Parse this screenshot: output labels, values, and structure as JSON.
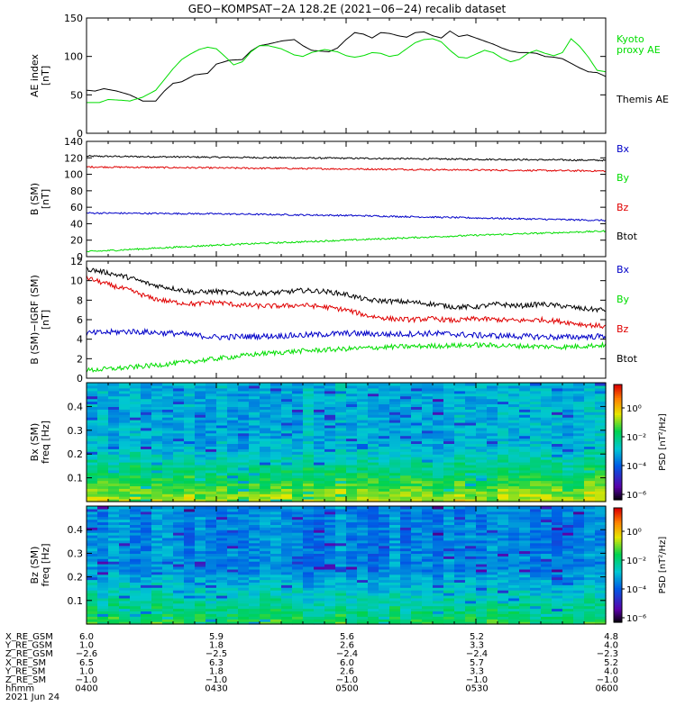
{
  "title": "GEO−KOMPSAT−2A 128.2E (2021−06−24) recalib dataset",
  "colors": {
    "black": "#000000",
    "green": "#00dd00",
    "red": "#e00000",
    "blue": "#0000c8"
  },
  "chart_data": [
    {
      "type": "line",
      "ylabel": "AE index\n[nT]",
      "ylim": [
        0,
        150
      ],
      "yticks": [
        0,
        50,
        100,
        150
      ],
      "legend": [
        {
          "name": "Kyoto\nproxy AE",
          "color": "#00dd00"
        },
        {
          "name": "Themis AE",
          "color": "#000000"
        }
      ],
      "series": [
        {
          "name": "Themis AE",
          "color": "#000000",
          "x": [
            0,
            2,
            4,
            7,
            10,
            13,
            16,
            18,
            20,
            22,
            25,
            28,
            30,
            33,
            36,
            38,
            40,
            42,
            45,
            48,
            50,
            52,
            54,
            56,
            58,
            60,
            62,
            64,
            66,
            68,
            70,
            72,
            74,
            76,
            78,
            80,
            82,
            84,
            86,
            88,
            90,
            92,
            94,
            96,
            98,
            100,
            102,
            104,
            106,
            108,
            110,
            112,
            114,
            116,
            118,
            120
          ],
          "values": [
            56,
            55,
            58,
            55,
            50,
            42,
            42,
            55,
            65,
            67,
            76,
            78,
            90,
            95,
            96,
            107,
            114,
            116,
            120,
            122,
            114,
            108,
            107,
            106,
            111,
            122,
            131,
            129,
            124,
            131,
            130,
            127,
            125,
            131,
            132,
            127,
            124,
            133,
            126,
            128,
            124,
            120,
            116,
            111,
            107,
            105,
            105,
            104,
            100,
            99,
            97,
            91,
            85,
            80,
            79,
            74
          ]
        },
        {
          "name": "Kyoto proxy AE",
          "color": "#00dd00",
          "x": [
            0,
            3,
            5,
            8,
            10,
            13,
            16,
            18,
            20,
            22,
            24,
            26,
            28,
            30,
            32,
            34,
            36,
            38,
            40,
            42,
            45,
            48,
            50,
            52,
            55,
            58,
            60,
            62,
            64,
            66,
            68,
            70,
            72,
            74,
            76,
            78,
            80,
            82,
            84,
            86,
            88,
            90,
            92,
            94,
            96,
            98,
            100,
            102,
            104,
            106,
            108,
            110,
            112,
            114,
            116,
            118,
            120
          ],
          "values": [
            40,
            40,
            44,
            43,
            42,
            47,
            56,
            70,
            84,
            96,
            103,
            109,
            112,
            110,
            100,
            89,
            93,
            106,
            114,
            114,
            110,
            102,
            100,
            105,
            109,
            106,
            101,
            99,
            101,
            105,
            104,
            100,
            102,
            110,
            118,
            122,
            123,
            119,
            108,
            99,
            98,
            103,
            108,
            105,
            98,
            93,
            96,
            104,
            108,
            104,
            101,
            105,
            123,
            113,
            99,
            82,
            80
          ]
        }
      ]
    },
    {
      "type": "line",
      "ylabel": "B (SM)\n[nT]",
      "ylim": [
        0,
        140
      ],
      "yticks": [
        0,
        20,
        40,
        60,
        80,
        100,
        120,
        140
      ],
      "legend": [
        {
          "name": "Bx",
          "color": "#0000c8"
        },
        {
          "name": "By",
          "color": "#00dd00"
        },
        {
          "name": "Bz",
          "color": "#e00000"
        },
        {
          "name": "Btot",
          "color": "#000000"
        }
      ],
      "series": [
        {
          "name": "Btot",
          "color": "#000000",
          "x": [
            0,
            120
          ],
          "values": [
            122,
            117
          ],
          "noise": 0.7
        },
        {
          "name": "Bz",
          "color": "#e00000",
          "x": [
            0,
            120
          ],
          "values": [
            109,
            104
          ],
          "noise": 0.7
        },
        {
          "name": "Bx",
          "color": "#0000c8",
          "x": [
            0,
            30,
            60,
            90,
            120
          ],
          "values": [
            53,
            52,
            50,
            47,
            44
          ],
          "noise": 0.7
        },
        {
          "name": "By",
          "color": "#00dd00",
          "x": [
            0,
            30,
            60,
            90,
            120
          ],
          "values": [
            6,
            14,
            20,
            26,
            31
          ],
          "noise": 0.7
        }
      ]
    },
    {
      "type": "line",
      "ylabel": "B (SM)−IGRF (SM)\n[nT]",
      "ylim": [
        0,
        12
      ],
      "yticks": [
        0,
        2,
        4,
        6,
        8,
        10,
        12
      ],
      "legend": [
        {
          "name": "Bx",
          "color": "#0000c8"
        },
        {
          "name": "By",
          "color": "#00dd00"
        },
        {
          "name": "Bz",
          "color": "#e00000"
        },
        {
          "name": "Btot",
          "color": "#000000"
        }
      ],
      "series": [
        {
          "name": "Btot",
          "color": "#000000",
          "x": [
            0,
            5,
            10,
            15,
            20,
            25,
            30,
            35,
            40,
            45,
            50,
            55,
            60,
            65,
            70,
            75,
            80,
            85,
            90,
            95,
            100,
            105,
            110,
            115,
            120
          ],
          "values": [
            11.2,
            10.8,
            10.3,
            9.6,
            9.2,
            8.8,
            8.9,
            8.7,
            8.7,
            8.8,
            9.0,
            8.9,
            8.6,
            8.0,
            7.9,
            7.8,
            7.6,
            7.3,
            7.3,
            7.6,
            7.4,
            7.6,
            7.4,
            7.1,
            7.0
          ],
          "noise": 0.25
        },
        {
          "name": "Bz",
          "color": "#e00000",
          "x": [
            0,
            5,
            10,
            15,
            20,
            25,
            30,
            35,
            40,
            45,
            50,
            55,
            60,
            65,
            70,
            75,
            80,
            85,
            90,
            95,
            100,
            105,
            110,
            115,
            120
          ],
          "values": [
            10.3,
            9.6,
            9.0,
            8.2,
            7.8,
            7.6,
            7.8,
            7.5,
            7.4,
            7.4,
            7.5,
            7.3,
            7.0,
            6.4,
            6.1,
            6.0,
            6.1,
            5.9,
            6.1,
            6.0,
            5.9,
            6.0,
            5.8,
            5.5,
            5.3
          ],
          "noise": 0.25
        },
        {
          "name": "Bx",
          "color": "#0000c8",
          "x": [
            0,
            10,
            20,
            30,
            40,
            50,
            60,
            70,
            80,
            90,
            100,
            110,
            120
          ],
          "values": [
            4.6,
            4.8,
            4.6,
            4.2,
            4.3,
            4.4,
            4.6,
            4.5,
            4.6,
            4.4,
            4.3,
            4.2,
            4.3
          ],
          "noise": 0.3
        },
        {
          "name": "By",
          "color": "#00dd00",
          "x": [
            0,
            10,
            20,
            30,
            40,
            50,
            60,
            70,
            80,
            90,
            100,
            110,
            120
          ],
          "values": [
            0.8,
            1.1,
            1.5,
            2.0,
            2.5,
            2.8,
            3.0,
            3.2,
            3.3,
            3.4,
            3.3,
            3.2,
            3.4
          ],
          "noise": 0.25
        }
      ]
    },
    {
      "type": "heatmap",
      "ylabel": "Bx (SM)\nfreq [Hz]",
      "ylim": [
        0,
        0.5
      ],
      "yticks": [
        0.1,
        0.2,
        0.3,
        0.4
      ],
      "colorbar_label": "PSD [nT²/Hz]",
      "colorbar_ticks": [
        "10⁰",
        "10⁻²",
        "10⁻⁴",
        "10⁻⁶"
      ],
      "low_freq_level": 0.72,
      "high_freq_level": 0.42
    },
    {
      "type": "heatmap",
      "ylabel": "Bz (SM)\nfreq [Hz]",
      "ylim": [
        0,
        0.5
      ],
      "yticks": [
        0.1,
        0.2,
        0.3,
        0.4
      ],
      "colorbar_label": "PSD [nT²/Hz]",
      "colorbar_ticks": [
        "10⁰",
        "10⁻²",
        "10⁻⁴",
        "10⁻⁶"
      ],
      "low_freq_level": 0.6,
      "high_freq_level": 0.36
    }
  ],
  "ephemeris": {
    "rows": [
      {
        "label": "X_RE_GSM",
        "values": [
          "6.0",
          "5.9",
          "5.6",
          "5.2",
          "4.8"
        ]
      },
      {
        "label": "Y_RE_GSM",
        "values": [
          "1.0",
          "1.8",
          "2.6",
          "3.3",
          "4.0"
        ]
      },
      {
        "label": "Z_RE_GSM",
        "values": [
          "−2.6",
          "−2.5",
          "−2.4",
          "−2.4",
          "−2.3"
        ]
      },
      {
        "label": "X_RE_SM",
        "values": [
          "6.5",
          "6.3",
          "6.0",
          "5.7",
          "5.2"
        ]
      },
      {
        "label": "Y_RE_SM",
        "values": [
          "1.0",
          "1.8",
          "2.6",
          "3.3",
          "4.0"
        ]
      },
      {
        "label": "Z_RE_SM",
        "values": [
          "−1.0",
          "−1.0",
          "−1.0",
          "−1.0",
          "−1.0"
        ]
      },
      {
        "label": "hhmm",
        "values": [
          "0400",
          "0430",
          "0500",
          "0530",
          "0600"
        ]
      }
    ],
    "date": "2021 Jun 24"
  }
}
